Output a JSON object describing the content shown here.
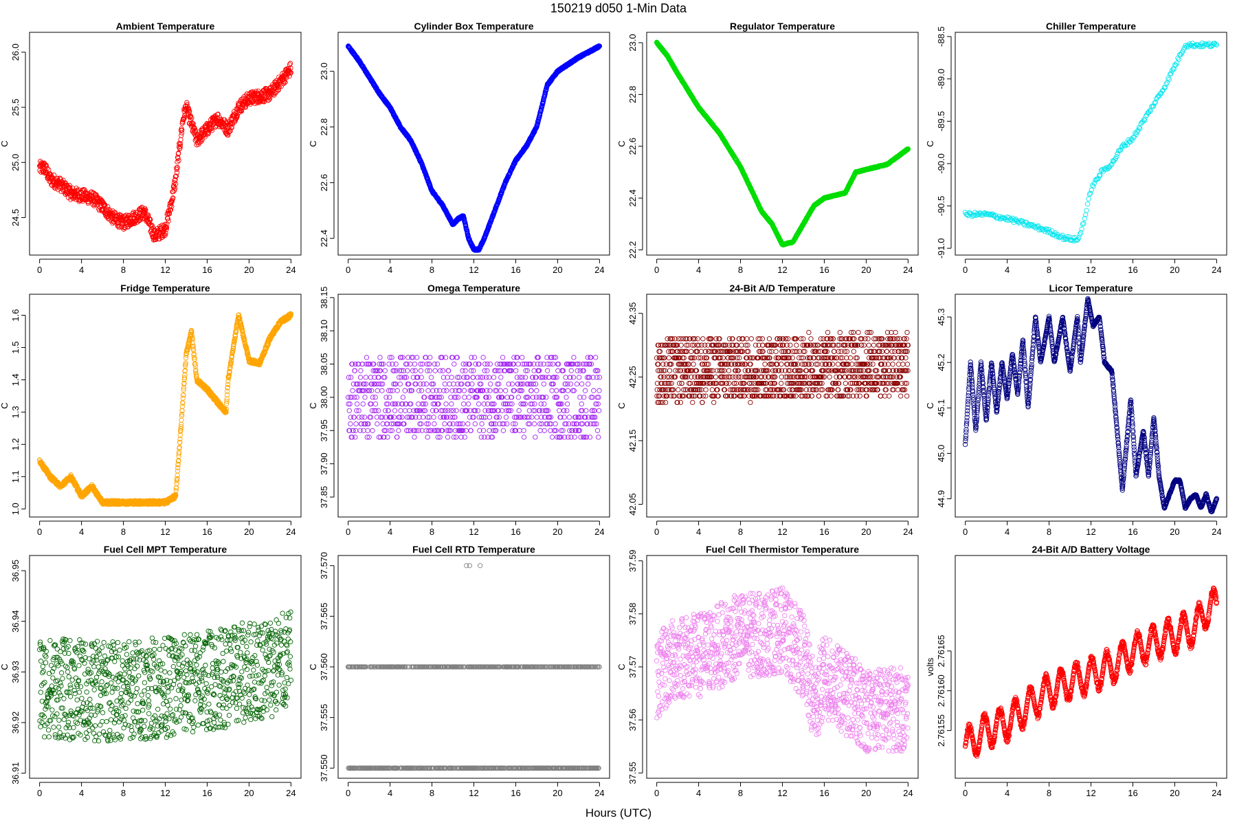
{
  "figure": {
    "title": "150219   d050   1-Min Data",
    "xlabel": "Hours (UTC)"
  },
  "chart_data": [
    {
      "type": "scatter",
      "title": "Ambient Temperature",
      "ylabel": "C",
      "color": "#ff0000",
      "xlim": [
        -0.96,
        24.96
      ],
      "ylim": [
        24.16,
        26.18
      ],
      "xticks": [
        0,
        4,
        8,
        12,
        16,
        20,
        24
      ],
      "yticks": [
        24.5,
        25.0,
        25.5,
        26.0
      ],
      "ytick_labels": [
        "24.5",
        "25.0",
        "25.5",
        "26.0"
      ],
      "shape": [
        [
          0,
          24.95
        ],
        [
          0.5,
          24.95
        ],
        [
          1,
          24.85
        ],
        [
          2,
          24.8
        ],
        [
          3,
          24.72
        ],
        [
          4,
          24.7
        ],
        [
          5,
          24.68
        ],
        [
          6,
          24.6
        ],
        [
          7,
          24.5
        ],
        [
          8,
          24.45
        ],
        [
          9,
          24.5
        ],
        [
          10,
          24.55
        ],
        [
          11,
          24.33
        ],
        [
          12,
          24.4
        ],
        [
          12.5,
          24.6
        ],
        [
          13,
          24.85
        ],
        [
          13.7,
          25.4
        ],
        [
          14,
          25.5
        ],
        [
          15,
          25.2
        ],
        [
          16,
          25.3
        ],
        [
          17,
          25.4
        ],
        [
          18,
          25.3
        ],
        [
          19,
          25.5
        ],
        [
          20,
          25.58
        ],
        [
          22,
          25.62
        ],
        [
          24,
          25.85
        ]
      ],
      "spread": 0.12,
      "n": 1000
    },
    {
      "type": "scatter",
      "title": "Cylinder Box Temperature",
      "ylabel": "C",
      "color": "#0000ff",
      "xlim": [
        -0.96,
        24.96
      ],
      "ylim": [
        22.34,
        23.14
      ],
      "xticks": [
        0,
        4,
        8,
        12,
        16,
        20,
        24
      ],
      "yticks": [
        22.4,
        22.6,
        22.8,
        23.0
      ],
      "ytick_labels": [
        "22.4",
        "22.6",
        "22.8",
        "23.0"
      ],
      "shape": [
        [
          0,
          23.09
        ],
        [
          1,
          23.04
        ],
        [
          2,
          22.98
        ],
        [
          3,
          22.92
        ],
        [
          4,
          22.87
        ],
        [
          5,
          22.8
        ],
        [
          6,
          22.75
        ],
        [
          7,
          22.67
        ],
        [
          8,
          22.57
        ],
        [
          9,
          22.52
        ],
        [
          10,
          22.45
        ],
        [
          10.5,
          22.47
        ],
        [
          11,
          22.48
        ],
        [
          11.5,
          22.4
        ],
        [
          12,
          22.36
        ],
        [
          12.5,
          22.36
        ],
        [
          13,
          22.4
        ],
        [
          14,
          22.5
        ],
        [
          15,
          22.6
        ],
        [
          16,
          22.68
        ],
        [
          17,
          22.73
        ],
        [
          18,
          22.8
        ],
        [
          19,
          22.95
        ],
        [
          20,
          23.0
        ],
        [
          22,
          23.05
        ],
        [
          24,
          23.09
        ]
      ],
      "spread": 0.006,
      "n": 1300
    },
    {
      "type": "scatter",
      "title": "Regulator Temperature",
      "ylabel": "C",
      "color": "#00dd00",
      "xlim": [
        -0.96,
        24.96
      ],
      "ylim": [
        22.18,
        23.04
      ],
      "xticks": [
        0,
        4,
        8,
        12,
        16,
        20,
        24
      ],
      "yticks": [
        22.2,
        22.4,
        22.6,
        22.8,
        23.0
      ],
      "ytick_labels": [
        "22.2",
        "22.4",
        "22.6",
        "22.8",
        "23.0"
      ],
      "shape": [
        [
          0,
          23.0
        ],
        [
          1,
          22.95
        ],
        [
          2,
          22.88
        ],
        [
          4,
          22.75
        ],
        [
          6,
          22.65
        ],
        [
          8,
          22.52
        ],
        [
          10,
          22.35
        ],
        [
          11,
          22.3
        ],
        [
          12,
          22.22
        ],
        [
          13,
          22.23
        ],
        [
          14,
          22.3
        ],
        [
          15,
          22.37
        ],
        [
          16,
          22.4
        ],
        [
          17,
          22.41
        ],
        [
          18,
          22.42
        ],
        [
          19,
          22.5
        ],
        [
          20,
          22.51
        ],
        [
          22,
          22.53
        ],
        [
          24,
          22.59
        ]
      ],
      "spread": 0.004,
      "n": 1300
    },
    {
      "type": "scatter",
      "title": "Chiller Temperature",
      "ylabel": "C",
      "color": "#00e5ee",
      "xlim": [
        -0.96,
        24.96
      ],
      "ylim": [
        -91.08,
        -88.45
      ],
      "xticks": [
        0,
        4,
        8,
        12,
        16,
        20,
        24
      ],
      "yticks": [
        -91.0,
        -90.5,
        -90.0,
        -89.5,
        -89.0,
        -88.5
      ],
      "ytick_labels": [
        "-91.0",
        "-90.5",
        "-90.0",
        "-89.5",
        "-89.0",
        "-88.5"
      ],
      "shape": [
        [
          0,
          -90.6
        ],
        [
          2,
          -90.6
        ],
        [
          4,
          -90.65
        ],
        [
          6,
          -90.72
        ],
        [
          8,
          -90.8
        ],
        [
          9.5,
          -90.88
        ],
        [
          10.8,
          -90.9
        ],
        [
          11.5,
          -90.6
        ],
        [
          12,
          -90.3
        ],
        [
          13,
          -90.1
        ],
        [
          14,
          -90.0
        ],
        [
          15,
          -89.8
        ],
        [
          16,
          -89.7
        ],
        [
          17,
          -89.5
        ],
        [
          18,
          -89.3
        ],
        [
          19,
          -89.1
        ],
        [
          20,
          -88.85
        ],
        [
          21,
          -88.6
        ],
        [
          24,
          -88.6
        ]
      ],
      "spread": 0.05,
      "n": 260
    },
    {
      "type": "scatter",
      "title": "Fridge Temperature",
      "ylabel": "C",
      "color": "#ffa500",
      "xlim": [
        -0.96,
        24.96
      ],
      "ylim": [
        0.975,
        1.665
      ],
      "xticks": [
        0,
        4,
        8,
        12,
        16,
        20,
        24
      ],
      "yticks": [
        1.0,
        1.1,
        1.2,
        1.3,
        1.4,
        1.5,
        1.6
      ],
      "ytick_labels": [
        "1.0",
        "1.1",
        "1.2",
        "1.3",
        "1.4",
        "1.5",
        "1.6"
      ],
      "shape": [
        [
          0,
          1.15
        ],
        [
          1,
          1.1
        ],
        [
          2,
          1.07
        ],
        [
          3,
          1.1
        ],
        [
          4,
          1.04
        ],
        [
          5,
          1.07
        ],
        [
          6,
          1.02
        ],
        [
          8,
          1.02
        ],
        [
          10,
          1.02
        ],
        [
          12,
          1.02
        ],
        [
          13,
          1.04
        ],
        [
          13.6,
          1.3
        ],
        [
          14,
          1.48
        ],
        [
          14.5,
          1.55
        ],
        [
          15,
          1.4
        ],
        [
          16,
          1.37
        ],
        [
          17,
          1.33
        ],
        [
          17.8,
          1.3
        ],
        [
          18,
          1.4
        ],
        [
          19,
          1.6
        ],
        [
          20,
          1.46
        ],
        [
          21,
          1.45
        ],
        [
          22,
          1.53
        ],
        [
          23,
          1.58
        ],
        [
          24,
          1.6
        ]
      ],
      "spread": 0.012,
      "n": 1300
    },
    {
      "type": "scatter",
      "title": "Omega Temperature",
      "ylabel": "C",
      "color": "#a020f0",
      "xlim": [
        -0.96,
        24.96
      ],
      "ylim": [
        37.82,
        38.155
      ],
      "xticks": [
        0,
        4,
        8,
        12,
        16,
        20,
        24
      ],
      "yticks": [
        37.85,
        37.9,
        37.95,
        38.0,
        38.05,
        38.1,
        38.15
      ],
      "ytick_labels": [
        "37.85",
        "37.90",
        "37.95",
        "38.00",
        "38.05",
        "38.10",
        "38.15"
      ],
      "shape": [
        [
          0,
          38.0
        ],
        [
          24,
          38.0
        ]
      ],
      "spread": 0.12,
      "quant": 0.01,
      "n": 900
    },
    {
      "type": "scatter",
      "title": "24-Bit A/D Temperature",
      "ylabel": "C",
      "color": "#8b0000",
      "xlim": [
        -0.96,
        24.96
      ],
      "ylim": [
        42.03,
        42.38
      ],
      "xticks": [
        0,
        4,
        8,
        12,
        16,
        20,
        24
      ],
      "yticks": [
        42.05,
        42.15,
        42.25,
        42.35
      ],
      "ytick_labels": [
        "42.05",
        "42.15",
        "42.25",
        "42.35"
      ],
      "shape": [
        [
          0,
          42.26
        ],
        [
          24,
          42.27
        ]
      ],
      "spread": 0.1,
      "quant": 0.01,
      "n": 1300
    },
    {
      "type": "scatter",
      "title": "Licor Temperature",
      "ylabel": "C",
      "color": "#000080",
      "xlim": [
        -0.96,
        24.96
      ],
      "ylim": [
        44.86,
        45.35
      ],
      "xticks": [
        0,
        4,
        8,
        12,
        16,
        20,
        24
      ],
      "yticks": [
        44.9,
        45.0,
        45.1,
        45.2,
        45.3
      ],
      "ytick_labels": [
        "44.9",
        "45.0",
        "45.1",
        "45.2",
        "45.3"
      ],
      "shape": [
        [
          0,
          45.02
        ],
        [
          0.5,
          45.2
        ],
        [
          1,
          45.05
        ],
        [
          1.5,
          45.2
        ],
        [
          2,
          45.07
        ],
        [
          2.5,
          45.2
        ],
        [
          3,
          45.09
        ],
        [
          3.5,
          45.2
        ],
        [
          4,
          45.12
        ],
        [
          4.5,
          45.22
        ],
        [
          5,
          45.13
        ],
        [
          5.5,
          45.25
        ],
        [
          6,
          45.1
        ],
        [
          6.7,
          45.3
        ],
        [
          7.2,
          45.2
        ],
        [
          8,
          45.3
        ],
        [
          8.5,
          45.2
        ],
        [
          9.3,
          45.3
        ],
        [
          10,
          45.18
        ],
        [
          10.7,
          45.3
        ],
        [
          11,
          45.2
        ],
        [
          11.7,
          45.34
        ],
        [
          12.2,
          45.28
        ],
        [
          12.8,
          45.3
        ],
        [
          13.3,
          45.2
        ],
        [
          14,
          45.18
        ],
        [
          15,
          44.92
        ],
        [
          15.8,
          45.12
        ],
        [
          16.3,
          44.95
        ],
        [
          17,
          45.05
        ],
        [
          17.5,
          44.95
        ],
        [
          18,
          45.08
        ],
        [
          18.5,
          44.95
        ],
        [
          19,
          44.88
        ],
        [
          20,
          44.94
        ],
        [
          20.5,
          44.94
        ],
        [
          21,
          44.88
        ],
        [
          21.5,
          44.9
        ],
        [
          22,
          44.91
        ],
        [
          22.5,
          44.88
        ],
        [
          23,
          44.91
        ],
        [
          23.5,
          44.87
        ],
        [
          24,
          44.9
        ]
      ],
      "spread": 0.004,
      "n": 1300
    },
    {
      "type": "scatter",
      "title": "Fuel Cell MPT Temperature",
      "ylabel": "C",
      "color": "#006400",
      "xlim": [
        -0.96,
        24.96
      ],
      "ylim": [
        36.909,
        36.953
      ],
      "xticks": [
        0,
        4,
        8,
        12,
        16,
        20,
        24
      ],
      "yticks": [
        36.91,
        36.92,
        36.93,
        36.94,
        36.95
      ],
      "ytick_labels": [
        "36.91",
        "36.92",
        "36.93",
        "36.94",
        "36.95"
      ],
      "shape": [
        [
          0,
          36.927
        ],
        [
          6,
          36.926
        ],
        [
          12,
          36.927
        ],
        [
          18,
          36.929
        ],
        [
          24,
          36.932
        ]
      ],
      "spread": 0.02,
      "n": 1100
    },
    {
      "type": "scatter",
      "title": "Fuel Cell RTD Temperature",
      "ylabel": "C",
      "color": "#808080",
      "xlim": [
        -0.96,
        24.96
      ],
      "ylim": [
        37.549,
        37.571
      ],
      "xticks": [
        0,
        4,
        8,
        12,
        16,
        20,
        24
      ],
      "yticks": [
        37.55,
        37.555,
        37.56,
        37.565,
        37.57
      ],
      "ytick_labels": [
        "37.550",
        "37.555",
        "37.560",
        "37.565",
        "37.570"
      ],
      "levels": [
        [
          37.55,
          0.5
        ],
        [
          37.56,
          0.5
        ]
      ],
      "extra": [
        [
          11.3,
          37.57
        ],
        [
          11.6,
          37.57
        ],
        [
          12.6,
          37.57
        ]
      ],
      "n": 900
    },
    {
      "type": "scatter",
      "title": "Fuel Cell Thermistor Temperature",
      "ylabel": "C",
      "color": "#ee82ee",
      "xlim": [
        -0.96,
        24.96
      ],
      "ylim": [
        37.549,
        37.591
      ],
      "xticks": [
        0,
        4,
        8,
        12,
        16,
        20,
        24
      ],
      "yticks": [
        37.55,
        37.56,
        37.57,
        37.58,
        37.59
      ],
      "ytick_labels": [
        "37.55",
        "37.56",
        "37.57",
        "37.58",
        "37.59"
      ],
      "shape": [
        [
          0,
          37.568
        ],
        [
          2,
          37.572
        ],
        [
          4,
          37.572
        ],
        [
          6,
          37.574
        ],
        [
          8,
          37.576
        ],
        [
          10,
          37.576
        ],
        [
          12,
          37.577
        ],
        [
          14,
          37.572
        ],
        [
          15,
          37.563
        ],
        [
          16,
          37.568
        ],
        [
          18,
          37.565
        ],
        [
          20,
          37.562
        ],
        [
          24,
          37.562
        ]
      ],
      "spread": 0.016,
      "n": 1300
    },
    {
      "type": "scatter",
      "title": "24-Bit A/D Battery Voltage",
      "ylabel": "volts",
      "color": "#ff0000",
      "xlim": [
        -0.96,
        24.96
      ],
      "ylim": [
        2.76149,
        2.76177
      ],
      "xticks": [
        0,
        4,
        8,
        12,
        16,
        20,
        24
      ],
      "yticks": [
        2.76155,
        2.7616,
        2.76165
      ],
      "ytick_labels": [
        "2.76155",
        "2.76160",
        "2.76165"
      ],
      "shape": [
        [
          0,
          2.76153
        ],
        [
          2,
          2.76155
        ],
        [
          4,
          2.76156
        ],
        [
          6,
          2.76158
        ],
        [
          8,
          2.7616
        ],
        [
          10,
          2.76161
        ],
        [
          12,
          2.76162
        ],
        [
          14,
          2.76163
        ],
        [
          16,
          2.76165
        ],
        [
          18,
          2.76166
        ],
        [
          20,
          2.76167
        ],
        [
          22,
          2.76168
        ],
        [
          23.5,
          2.76171
        ],
        [
          24,
          2.7617
        ]
      ],
      "wave": 2.5e-05,
      "n": 1300
    }
  ]
}
